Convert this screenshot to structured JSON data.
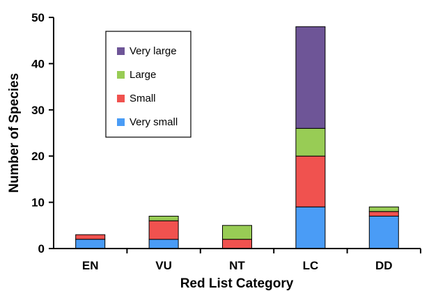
{
  "chart_data": {
    "type": "bar",
    "stacked": true,
    "categories": [
      "EN",
      "VU",
      "NT",
      "LC",
      "DD"
    ],
    "series": [
      {
        "name": "Very small",
        "color": "#4a9cf6",
        "values": [
          2,
          2,
          0,
          9,
          7
        ]
      },
      {
        "name": "Small",
        "color": "#f0524f",
        "values": [
          1,
          4,
          2,
          11,
          1
        ]
      },
      {
        "name": "Large",
        "color": "#98cc55",
        "values": [
          0,
          1,
          3,
          6,
          1
        ]
      },
      {
        "name": "Very large",
        "color": "#6e5597",
        "values": [
          0,
          0,
          0,
          22,
          0
        ]
      }
    ],
    "legend_order": [
      "Very large",
      "Large",
      "Small",
      "Very small"
    ],
    "xlabel": "Red List Category",
    "ylabel": "Number of Species",
    "ylim": [
      0,
      50
    ],
    "yticks": [
      0,
      10,
      20,
      30,
      40,
      50
    ],
    "grid": false,
    "legend_position": "top-left"
  }
}
